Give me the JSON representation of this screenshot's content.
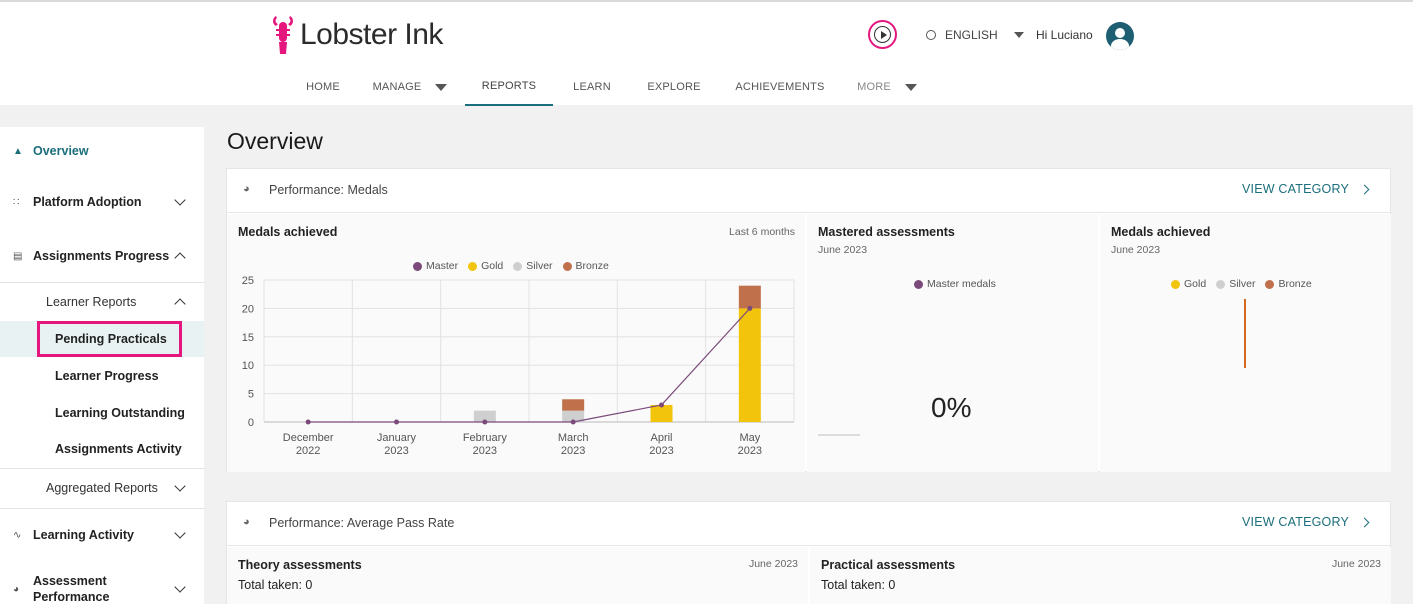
{
  "header": {
    "brand": "Lobster Ink",
    "language": "ENGLISH",
    "greeting": "Hi Luciano",
    "nav": [
      {
        "label": "HOME"
      },
      {
        "label": "MANAGE"
      },
      {
        "label": "REPORTS"
      },
      {
        "label": "LEARN"
      },
      {
        "label": "EXPLORE"
      },
      {
        "label": "ACHIEVEMENTS"
      },
      {
        "label": "MORE"
      }
    ],
    "active_nav": "REPORTS"
  },
  "sidebar": {
    "items": [
      {
        "label": "Overview"
      },
      {
        "label": "Platform Adoption"
      },
      {
        "label": "Assignments Progress"
      },
      {
        "label": "Learner Reports"
      },
      {
        "label": "Pending Practicals"
      },
      {
        "label": "Learner Progress"
      },
      {
        "label": "Learning Outstanding"
      },
      {
        "label": "Assignments Activity"
      },
      {
        "label": "Aggregated Reports"
      },
      {
        "label": "Learning Activity"
      },
      {
        "label": "Assessment Performance"
      }
    ],
    "selected": "Pending Practicals"
  },
  "main": {
    "title": "Overview",
    "medals_card": {
      "title": "Performance: Medals",
      "view_label": "VIEW CATEGORY",
      "medals_panel": {
        "title": "Medals achieved",
        "range": "Last 6 months"
      },
      "mastered_panel": {
        "title": "Mastered assessments",
        "date": "June 2023",
        "legend": "Master medals",
        "value": "0%"
      },
      "medals_june_panel": {
        "title": "Medals achieved",
        "date": "June 2023",
        "legend": [
          "Gold",
          "Silver",
          "Bronze"
        ]
      }
    },
    "pass_card": {
      "title": "Performance: Average Pass Rate",
      "view_label": "VIEW CATEGORY",
      "theory": {
        "title": "Theory assessments",
        "date": "June 2023",
        "total": "Total taken: 0"
      },
      "practical": {
        "title": "Practical assessments",
        "date": "June 2023",
        "total": "Total taken: 0"
      }
    }
  },
  "colors": {
    "accent": "#1b6e7c",
    "brand_pink": "#e5177e",
    "master": "#7b4a7a",
    "gold": "#f2c40c",
    "silver": "#cfcfcf",
    "bronze": "#c0704a"
  },
  "chart_data": {
    "type": "bar",
    "title": "Medals achieved",
    "categories": [
      [
        "December",
        "2022"
      ],
      [
        "January",
        "2023"
      ],
      [
        "February",
        "2023"
      ],
      [
        "March",
        "2023"
      ],
      [
        "April",
        "2023"
      ],
      [
        "May",
        "2023"
      ]
    ],
    "series": [
      {
        "name": "Master",
        "type": "line",
        "values": [
          0,
          0,
          0,
          0,
          3,
          20
        ]
      },
      {
        "name": "Gold",
        "values": [
          0,
          0,
          0,
          0,
          3,
          20
        ]
      },
      {
        "name": "Silver",
        "values": [
          0,
          0,
          2,
          2,
          0,
          0
        ]
      },
      {
        "name": "Bronze",
        "values": [
          0,
          0,
          0,
          2,
          0,
          4
        ]
      }
    ],
    "stacked": true,
    "ylim": [
      0,
      25
    ],
    "yticks": [
      0,
      5,
      10,
      15,
      20,
      25
    ],
    "grid": true,
    "legend": "top-center"
  }
}
